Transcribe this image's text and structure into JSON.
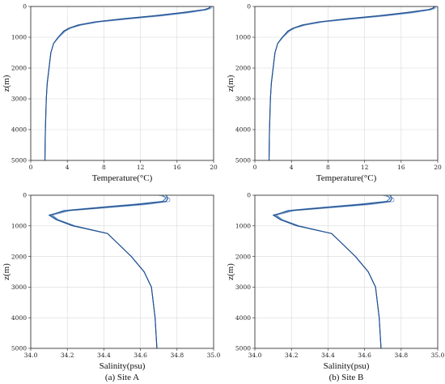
{
  "chart_data": [
    {
      "id": "temp-a",
      "type": "line",
      "xlabel": "Temperature(°C)",
      "ylabel": "z(m)",
      "xlim": [
        0,
        20
      ],
      "ylim": [
        0,
        5000
      ],
      "y_inverted": true,
      "grid": true,
      "xticks": [
        0,
        4,
        8,
        12,
        16,
        20
      ],
      "yticks": [
        0,
        1000,
        2000,
        3000,
        4000,
        5000
      ],
      "caption": "",
      "series": [
        {
          "color": "#1f4e8c",
          "x": [
            19.6,
            19.5,
            19.0,
            16.5,
            13.5,
            10.0,
            7.0,
            5.2,
            4.2,
            3.6,
            3.0,
            2.5,
            2.2,
            2.0,
            1.8,
            1.7,
            1.6,
            1.55
          ],
          "y": [
            0,
            50,
            100,
            200,
            300,
            400,
            500,
            600,
            700,
            800,
            1000,
            1200,
            1500,
            2000,
            2500,
            3000,
            4000,
            5000
          ]
        },
        {
          "color": "#4a7ab8",
          "x": [
            19.7,
            19.6,
            19.2,
            17.0,
            14.0,
            10.5,
            7.3,
            5.4,
            4.3,
            3.7,
            3.0,
            2.5,
            2.2,
            2.0,
            1.8,
            1.7,
            1.6,
            1.55
          ],
          "y": [
            0,
            50,
            100,
            200,
            300,
            400,
            500,
            600,
            700,
            800,
            1000,
            1200,
            1500,
            2000,
            2500,
            3000,
            4000,
            5000
          ]
        },
        {
          "color": "#9ab8dc",
          "x": [
            19.8,
            19.8,
            19.4,
            17.4,
            14.5,
            11.0,
            7.6,
            5.6,
            4.4,
            3.8,
            3.1,
            2.5,
            2.2,
            2.0,
            1.8,
            1.7,
            1.6,
            1.55
          ],
          "y": [
            0,
            50,
            100,
            200,
            300,
            400,
            500,
            600,
            700,
            800,
            1000,
            1200,
            1500,
            2000,
            2500,
            3000,
            4000,
            5000
          ]
        }
      ]
    },
    {
      "id": "temp-b",
      "type": "line",
      "xlabel": "Temperature(°C)",
      "ylabel": "z(m)",
      "xlim": [
        0,
        20
      ],
      "ylim": [
        0,
        5000
      ],
      "y_inverted": true,
      "grid": true,
      "xticks": [
        0,
        4,
        8,
        12,
        16,
        20
      ],
      "yticks": [
        0,
        1000,
        2000,
        3000,
        4000,
        5000
      ],
      "caption": "",
      "series": [
        {
          "color": "#1f4e8c",
          "x": [
            19.6,
            19.5,
            19.0,
            16.5,
            13.5,
            10.0,
            7.0,
            5.2,
            4.2,
            3.6,
            3.0,
            2.5,
            2.2,
            2.0,
            1.8,
            1.7,
            1.6,
            1.55
          ],
          "y": [
            0,
            50,
            100,
            200,
            300,
            400,
            500,
            600,
            700,
            800,
            1000,
            1200,
            1500,
            2000,
            2500,
            3000,
            4000,
            5000
          ]
        },
        {
          "color": "#4a7ab8",
          "x": [
            19.7,
            19.6,
            19.2,
            17.0,
            14.0,
            10.5,
            7.3,
            5.4,
            4.3,
            3.7,
            3.0,
            2.5,
            2.2,
            2.0,
            1.8,
            1.7,
            1.6,
            1.55
          ],
          "y": [
            0,
            50,
            100,
            200,
            300,
            400,
            500,
            600,
            700,
            800,
            1000,
            1200,
            1500,
            2000,
            2500,
            3000,
            4000,
            5000
          ]
        },
        {
          "color": "#9ab8dc",
          "x": [
            19.8,
            19.8,
            19.4,
            17.4,
            14.5,
            11.0,
            7.6,
            5.6,
            4.4,
            3.8,
            3.1,
            2.5,
            2.2,
            2.0,
            1.8,
            1.7,
            1.6,
            1.55
          ],
          "y": [
            0,
            50,
            100,
            200,
            300,
            400,
            500,
            600,
            700,
            800,
            1000,
            1200,
            1500,
            2000,
            2500,
            3000,
            4000,
            5000
          ]
        }
      ]
    },
    {
      "id": "sal-a",
      "type": "line",
      "xlabel": "Salinity(psu)",
      "ylabel": "z(m)",
      "xlim": [
        34.0,
        35.0
      ],
      "ylim": [
        0,
        5000
      ],
      "y_inverted": true,
      "grid": true,
      "xticks": [
        "34.0",
        "34.2",
        "34.4",
        "34.6",
        "34.8",
        "35.0"
      ],
      "yticks": [
        0,
        1000,
        2000,
        3000,
        4000,
        5000
      ],
      "caption": "(a) Site A",
      "series": [
        {
          "color": "#1f4e8c",
          "x": [
            34.74,
            34.75,
            34.74,
            34.6,
            34.4,
            34.2,
            34.1,
            34.14,
            34.23,
            34.42,
            34.55,
            34.62,
            34.66,
            34.68,
            34.69
          ],
          "y": [
            0,
            100,
            200,
            300,
            400,
            500,
            650,
            800,
            1000,
            1250,
            2000,
            2500,
            3000,
            4000,
            5000
          ]
        },
        {
          "color": "#4a7ab8",
          "x": [
            34.72,
            34.74,
            34.72,
            34.56,
            34.36,
            34.18,
            34.11,
            34.15,
            34.24,
            34.42,
            34.55,
            34.62,
            34.66,
            34.68,
            34.69
          ],
          "y": [
            0,
            100,
            200,
            300,
            400,
            500,
            650,
            800,
            1000,
            1250,
            2000,
            2500,
            3000,
            4000,
            5000
          ]
        },
        {
          "color": "#9ab8dc",
          "x": [
            34.7,
            34.76,
            34.76,
            34.64,
            34.44,
            34.22,
            34.12,
            34.15,
            34.24,
            34.42,
            34.55,
            34.62,
            34.66,
            34.68,
            34.69
          ],
          "y": [
            0,
            100,
            200,
            300,
            400,
            500,
            650,
            800,
            1000,
            1250,
            2000,
            2500,
            3000,
            4000,
            5000
          ]
        }
      ]
    },
    {
      "id": "sal-b",
      "type": "line",
      "xlabel": "Salinity(psu)",
      "ylabel": "z(m)",
      "xlim": [
        34.0,
        35.0
      ],
      "ylim": [
        0,
        5000
      ],
      "y_inverted": true,
      "grid": true,
      "xticks": [
        "34.0",
        "34.2",
        "34.4",
        "34.6",
        "34.8",
        "35.0"
      ],
      "yticks": [
        0,
        1000,
        2000,
        3000,
        4000,
        5000
      ],
      "caption": "(b) Site B",
      "series": [
        {
          "color": "#1f4e8c",
          "x": [
            34.74,
            34.75,
            34.74,
            34.6,
            34.4,
            34.2,
            34.1,
            34.14,
            34.23,
            34.42,
            34.55,
            34.62,
            34.66,
            34.68,
            34.69
          ],
          "y": [
            0,
            100,
            200,
            300,
            400,
            500,
            650,
            800,
            1000,
            1250,
            2000,
            2500,
            3000,
            4000,
            5000
          ]
        },
        {
          "color": "#4a7ab8",
          "x": [
            34.72,
            34.74,
            34.72,
            34.56,
            34.36,
            34.18,
            34.11,
            34.15,
            34.24,
            34.42,
            34.55,
            34.62,
            34.66,
            34.68,
            34.69
          ],
          "y": [
            0,
            100,
            200,
            300,
            400,
            500,
            650,
            800,
            1000,
            1250,
            2000,
            2500,
            3000,
            4000,
            5000
          ]
        },
        {
          "color": "#9ab8dc",
          "x": [
            34.7,
            34.76,
            34.76,
            34.64,
            34.44,
            34.22,
            34.12,
            34.15,
            34.24,
            34.42,
            34.55,
            34.62,
            34.66,
            34.68,
            34.69
          ],
          "y": [
            0,
            100,
            200,
            300,
            400,
            500,
            650,
            800,
            1000,
            1250,
            2000,
            2500,
            3000,
            4000,
            5000
          ]
        }
      ]
    }
  ]
}
